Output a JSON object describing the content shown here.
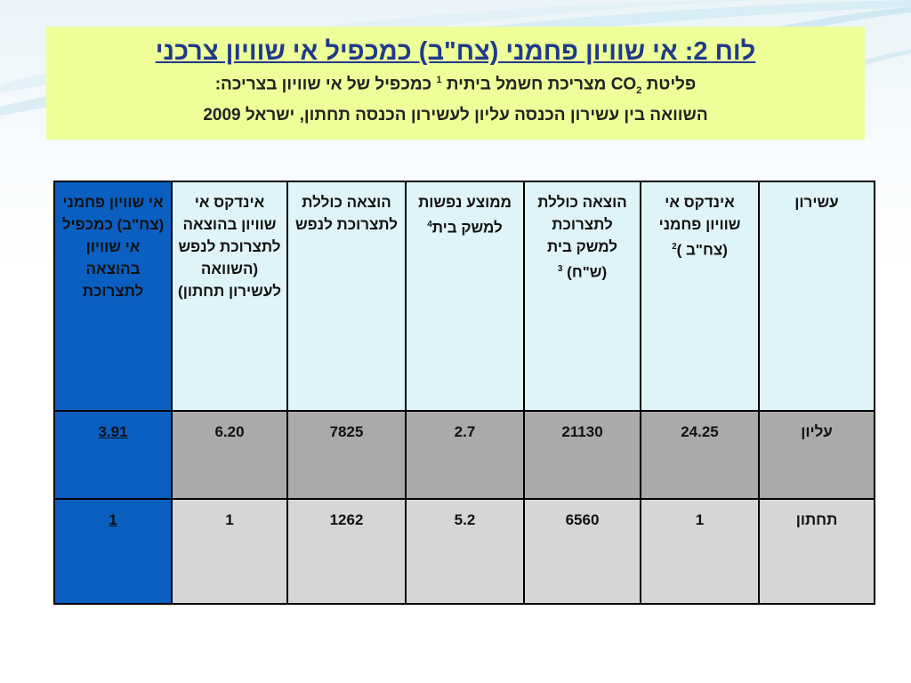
{
  "title": {
    "main": "לוח 2: אי שוויון פחמני (צח\"ב) כמכפיל אי שוויון צרכני",
    "line1_pre": "פליטת CO",
    "line1_sub": "2",
    "line1_mid": " מצריכת חשמל ביתית ",
    "line1_sup": "1",
    "line1_post": " כמכפיל של  אי שוויון בצריכה:",
    "line2": "השוואה בין עשירון הכנסה עליון לעשירון הכנסה תחתון, ישראל 2009"
  },
  "table": {
    "headers": {
      "decile": "עשירון",
      "carbon_index": "אינדקס אי שוויון פחמני (צח\"ב )",
      "carbon_index_sup": "2",
      "hh_expenditure": "הוצאה כוללת לתצרוכת למשק בית (ש\"ח)",
      "hh_expenditure_sup": "3",
      "avg_persons": "ממוצע נפשות למשק בית",
      "avg_persons_sup": "4",
      "per_capita_expenditure": "הוצאה כוללת לתצרוכת לנפש",
      "inequality_index": "אינדקס אי שוויון בהוצאה לתצרוכת לנפש (השוואה לעשירון תחתון)",
      "multiplier": "אי שוויון פחמני (צח\"ב) כמכפיל אי שוויון בהוצאה לתצרוכת"
    },
    "rows": [
      {
        "decile": "עליון",
        "carbon_index": "24.25",
        "hh_expenditure": "21130",
        "avg_persons": "2.7",
        "per_capita_expenditure": "7825",
        "inequality_index": "6.20",
        "multiplier": "3.91"
      },
      {
        "decile": "תחתון",
        "carbon_index": "1",
        "hh_expenditure": "6560",
        "avg_persons": "5.2",
        "per_capita_expenditure": "1262",
        "inequality_index": "1",
        "multiplier": "1"
      }
    ]
  },
  "colors": {
    "title_bg": "#eeff99",
    "title_text": "#1f3a8a",
    "header_bg": "#dff4f8",
    "top_row_bg": "#aaaaaa",
    "bottom_row_bg": "#d6d6d6",
    "result_col_bg": "#0a5fc1"
  }
}
